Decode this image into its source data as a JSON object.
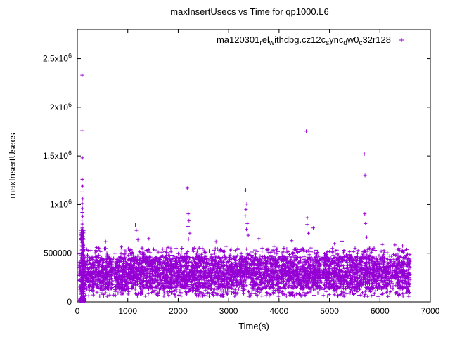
{
  "page": {
    "background": "#ffffff"
  },
  "chart_data": {
    "type": "scatter",
    "title": "maxInsertUsecs vs Time for qp1000.L6",
    "xlabel": "Time(s)",
    "ylabel": "maxInsertUsecs",
    "xlim": [
      0,
      7000
    ],
    "ylim": [
      0,
      2800000
    ],
    "xticks": [
      0,
      1000,
      2000,
      3000,
      4000,
      5000,
      6000,
      7000
    ],
    "yticks": [
      {
        "v": 0,
        "label": "0"
      },
      {
        "v": 500000,
        "label": "500000"
      },
      {
        "v": 1000000,
        "label": "1x10^6"
      },
      {
        "v": 1500000,
        "label": "1.5x10^6"
      },
      {
        "v": 2000000,
        "label": "2x10^6"
      },
      {
        "v": 2500000,
        "label": "2.5x10^6"
      }
    ],
    "grid": false,
    "legend_position": "top-right-inside",
    "legend": {
      "marker": "+",
      "plain_text": "ma120301_rel_withdbg.cz12c_sync_dw0_c32r128",
      "parts": [
        {
          "t": "ma120301"
        },
        {
          "t": "r",
          "sub": true
        },
        {
          "t": "el"
        },
        {
          "t": "w",
          "sub": true
        },
        {
          "t": "ithdbg.cz12c"
        },
        {
          "t": "s",
          "sub": true
        },
        {
          "t": "ync"
        },
        {
          "t": "d",
          "sub": true
        },
        {
          "t": "w0"
        },
        {
          "t": "c",
          "sub": true
        },
        {
          "t": "32r128"
        }
      ]
    },
    "marker": "+",
    "marker_color": "#9400d3",
    "axis_color": "#000000",
    "seed": 1337,
    "scatter_bands": [
      {
        "name": "main-upper",
        "count": 2200,
        "x": [
          30,
          6600
        ],
        "y": [
          300000,
          465000
        ]
      },
      {
        "name": "main-mid",
        "count": 900,
        "x": [
          30,
          6600
        ],
        "y": [
          250000,
          305000
        ]
      },
      {
        "name": "main-lower",
        "count": 1500,
        "x": [
          30,
          6600
        ],
        "y": [
          135000,
          255000
        ]
      },
      {
        "name": "low-sparse",
        "count": 320,
        "x": [
          30,
          6600
        ],
        "y": [
          55000,
          135000
        ]
      },
      {
        "name": "high-sparse",
        "count": 270,
        "x": [
          30,
          6600
        ],
        "y": [
          465000,
          555000
        ]
      },
      {
        "name": "startup-spike",
        "count": 140,
        "x": [
          72,
          128
        ],
        "y": [
          20000,
          740000
        ]
      },
      {
        "name": "near-zero",
        "count": 70,
        "x": [
          45,
          150
        ],
        "y": [
          4000,
          38000
        ]
      }
    ],
    "outliers": [
      [
        95,
        2330000
      ],
      [
        92,
        1760000
      ],
      [
        100,
        1480000
      ],
      [
        97,
        1260000
      ],
      [
        104,
        1190000
      ],
      [
        91,
        1130000
      ],
      [
        108,
        1060000
      ],
      [
        99,
        1010000
      ],
      [
        103,
        960000
      ],
      [
        95,
        920000
      ],
      [
        106,
        880000
      ],
      [
        93,
        840000
      ],
      [
        101,
        800000
      ],
      [
        98,
        760000
      ],
      [
        380,
        560000
      ],
      [
        560,
        620000
      ],
      [
        870,
        565000
      ],
      [
        1150,
        790000
      ],
      [
        1170,
        735000
      ],
      [
        1200,
        640000
      ],
      [
        1420,
        650000
      ],
      [
        1800,
        560000
      ],
      [
        2180,
        1170000
      ],
      [
        2200,
        905000
      ],
      [
        2215,
        835000
      ],
      [
        2195,
        775000
      ],
      [
        2230,
        705000
      ],
      [
        2205,
        645000
      ],
      [
        2750,
        620000
      ],
      [
        2950,
        570000
      ],
      [
        3340,
        1150000
      ],
      [
        3360,
        1005000
      ],
      [
        3345,
        950000
      ],
      [
        3330,
        885000
      ],
      [
        3370,
        805000
      ],
      [
        3355,
        745000
      ],
      [
        3390,
        685000
      ],
      [
        3600,
        650000
      ],
      [
        3900,
        570000
      ],
      [
        4250,
        630000
      ],
      [
        4540,
        1755000
      ],
      [
        4560,
        865000
      ],
      [
        4555,
        795000
      ],
      [
        4580,
        705000
      ],
      [
        4680,
        760000
      ],
      [
        5100,
        600000
      ],
      [
        5250,
        625000
      ],
      [
        5690,
        1520000
      ],
      [
        5705,
        1300000
      ],
      [
        5700,
        905000
      ],
      [
        5715,
        805000
      ],
      [
        5740,
        665000
      ],
      [
        6050,
        590000
      ],
      [
        6300,
        585000
      ],
      [
        6450,
        575000
      ]
    ]
  }
}
